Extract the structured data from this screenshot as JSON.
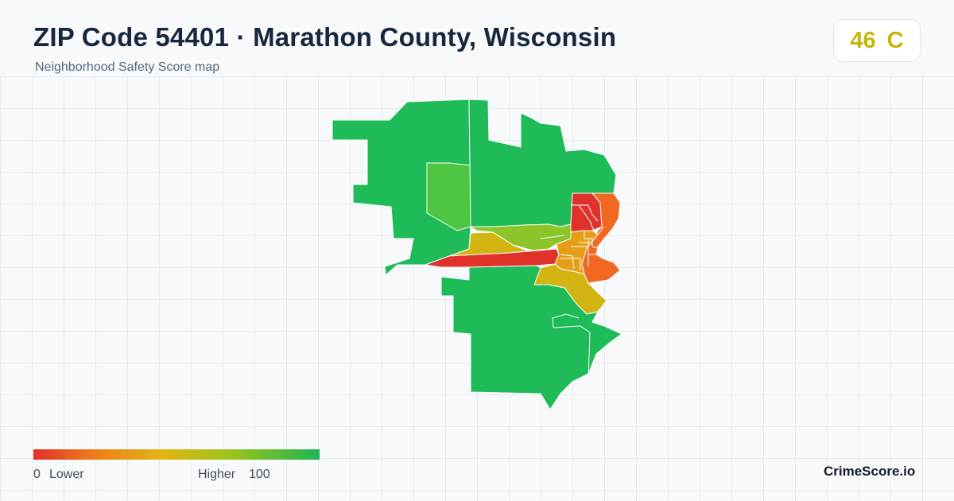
{
  "header": {
    "title": "ZIP Code 54401 · Marathon County, Wisconsin",
    "subtitle": "Neighborhood Safety Score map"
  },
  "score_card": {
    "score": "46",
    "grade": "C",
    "color": "#c9b40c"
  },
  "map": {
    "colors": {
      "high": "#1fbb58",
      "light_green": "#4fc642",
      "yellow_green": "#8cc52a",
      "yellow": "#d2b513",
      "amber": "#e59e16",
      "orange": "#f06821",
      "red": "#e0312a",
      "boundary": "#ffffff"
    }
  },
  "legend": {
    "min": "0",
    "min_label": "Lower",
    "max_label": "Higher",
    "max": "100",
    "gradient": [
      "#e0312a",
      "#ef7f1a",
      "#e2b512",
      "#98c41a",
      "#1fb455"
    ]
  },
  "brand": "CrimeScore.io"
}
